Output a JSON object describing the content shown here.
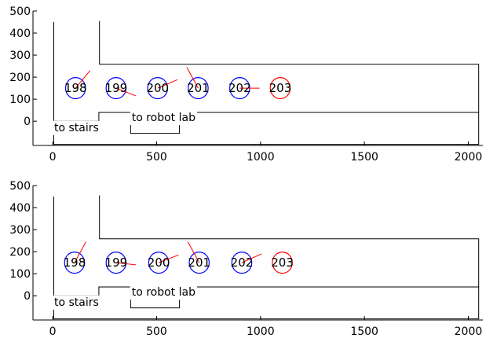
{
  "chart_data": [
    {
      "type": "line",
      "title": "",
      "xlabel": "",
      "ylabel": "",
      "xlim": [
        -95,
        2070
      ],
      "ylim": [
        -110,
        500
      ],
      "x_ticks": [
        0,
        500,
        1000,
        1500,
        2000
      ],
      "y_ticks": [
        0,
        100,
        200,
        300,
        400,
        500
      ],
      "grid": false,
      "colors": {
        "boundary": "#000000",
        "room": "#0000ff",
        "target": "#ff0000",
        "heading": "#ff0000"
      },
      "upper_boundary": [
        [
          5,
          450
        ],
        [
          5,
          -105
        ],
        [
          2050,
          -105
        ],
        [
          2050,
          40
        ],
        [
          610,
          40
        ],
        [
          610,
          -55
        ],
        [
          375,
          -55
        ],
        [
          375,
          40
        ],
        [
          222,
          40
        ],
        [
          222,
          0
        ],
        [
          5,
          0
        ]
      ],
      "lower_boundary": [
        [
          225,
          455
        ],
        [
          225,
          258
        ],
        [
          2050,
          258
        ],
        [
          2050,
          40
        ]
      ],
      "labels": [
        {
          "text": "to stairs",
          "x": 7,
          "y": -45
        },
        {
          "text": "to robot lab",
          "x": 380,
          "y": 0
        }
      ],
      "rooms": [
        {
          "label": "198",
          "x": 110,
          "y": 150,
          "r": 48,
          "heading_dx": 70,
          "heading_dy": 80,
          "target": false
        },
        {
          "label": "199",
          "x": 305,
          "y": 150,
          "r": 48,
          "heading_dx": 95,
          "heading_dy": -35,
          "target": false
        },
        {
          "label": "200",
          "x": 505,
          "y": 150,
          "r": 48,
          "heading_dx": 95,
          "heading_dy": 38,
          "target": false
        },
        {
          "label": "201",
          "x": 700,
          "y": 150,
          "r": 48,
          "heading_dx": -55,
          "heading_dy": 95,
          "target": false
        },
        {
          "label": "202",
          "x": 900,
          "y": 150,
          "r": 48,
          "heading_dx": 95,
          "heading_dy": 0,
          "target": false
        },
        {
          "label": "203",
          "x": 1095,
          "y": 150,
          "r": 48,
          "heading_dx": 0,
          "heading_dy": 0,
          "target": true
        }
      ]
    },
    {
      "type": "line",
      "title": "",
      "xlabel": "",
      "ylabel": "",
      "xlim": [
        -95,
        2070
      ],
      "ylim": [
        -110,
        500
      ],
      "x_ticks": [
        0,
        500,
        1000,
        1500,
        2000
      ],
      "y_ticks": [
        0,
        100,
        200,
        300,
        400,
        500
      ],
      "grid": false,
      "colors": {
        "boundary": "#000000",
        "room": "#0000ff",
        "target": "#ff0000",
        "heading": "#ff0000"
      },
      "upper_boundary": [
        [
          5,
          450
        ],
        [
          5,
          -105
        ],
        [
          2050,
          -105
        ],
        [
          2050,
          40
        ],
        [
          610,
          40
        ],
        [
          610,
          -55
        ],
        [
          375,
          -55
        ],
        [
          375,
          40
        ],
        [
          222,
          40
        ],
        [
          222,
          0
        ],
        [
          5,
          0
        ]
      ],
      "lower_boundary": [
        [
          225,
          455
        ],
        [
          225,
          258
        ],
        [
          2050,
          258
        ],
        [
          2050,
          40
        ]
      ],
      "labels": [
        {
          "text": "to stairs",
          "x": 7,
          "y": -45
        },
        {
          "text": "to robot lab",
          "x": 380,
          "y": 0
        }
      ],
      "rooms": [
        {
          "label": "198",
          "x": 105,
          "y": 150,
          "r": 48,
          "heading_dx": 55,
          "heading_dy": 95,
          "target": false
        },
        {
          "label": "199",
          "x": 305,
          "y": 150,
          "r": 48,
          "heading_dx": 95,
          "heading_dy": -10,
          "target": false
        },
        {
          "label": "200",
          "x": 510,
          "y": 150,
          "r": 48,
          "heading_dx": 95,
          "heading_dy": 35,
          "target": false
        },
        {
          "label": "201",
          "x": 705,
          "y": 150,
          "r": 48,
          "heading_dx": -55,
          "heading_dy": 95,
          "target": false
        },
        {
          "label": "202",
          "x": 910,
          "y": 150,
          "r": 48,
          "heading_dx": 95,
          "heading_dy": 40,
          "target": false
        },
        {
          "label": "203",
          "x": 1105,
          "y": 150,
          "r": 48,
          "heading_dx": 0,
          "heading_dy": 0,
          "target": true
        }
      ]
    }
  ]
}
